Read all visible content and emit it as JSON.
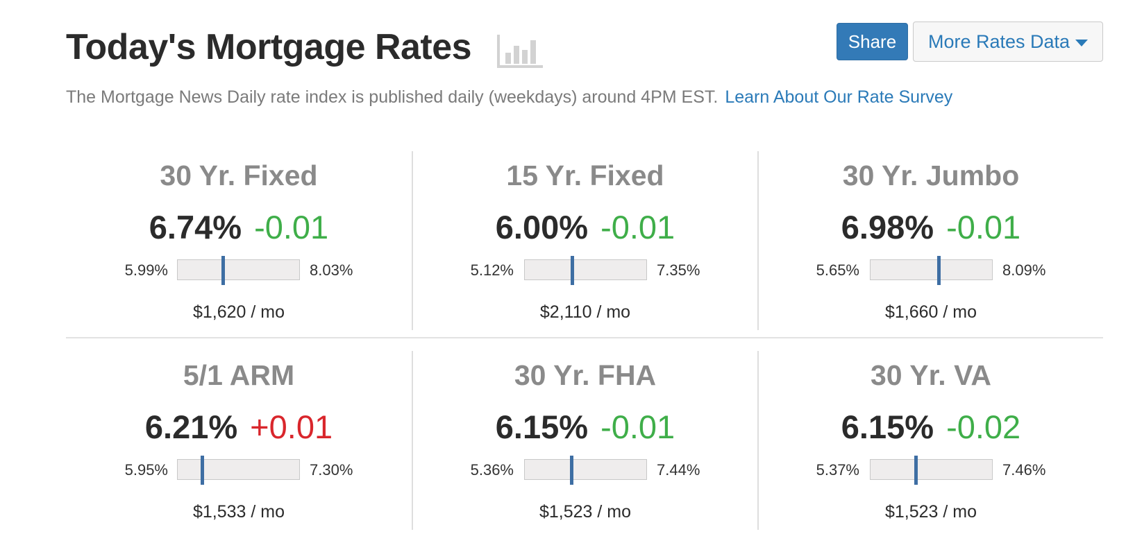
{
  "header": {
    "title": "Today's Mortgage Rates",
    "subtitle": "The Mortgage News Daily rate index is published daily (weekdays) around 4PM EST.",
    "learn_link": "Learn About Our Rate Survey",
    "share_label": "Share",
    "more_label": "More Rates Data",
    "icons": [
      "bar-chart-icon",
      "caret-down-icon"
    ]
  },
  "colors": {
    "accent_blue": "#337ab7",
    "link_blue": "#2a7ab8",
    "change_down": "#3fae49",
    "change_up": "#d9262c",
    "marker": "#3e6ea3"
  },
  "rates": [
    {
      "name": "30 Yr. Fixed",
      "rate": "6.74%",
      "change": "-0.01",
      "direction": "down",
      "low": "5.99%",
      "high": "8.03%",
      "position": 0.37,
      "payment": "$1,620 / mo"
    },
    {
      "name": "15 Yr. Fixed",
      "rate": "6.00%",
      "change": "-0.01",
      "direction": "down",
      "low": "5.12%",
      "high": "7.35%",
      "position": 0.39,
      "payment": "$2,110 / mo"
    },
    {
      "name": "30 Yr. Jumbo",
      "rate": "6.98%",
      "change": "-0.01",
      "direction": "down",
      "low": "5.65%",
      "high": "8.09%",
      "position": 0.56,
      "payment": "$1,660 / mo"
    },
    {
      "name": "5/1 ARM",
      "rate": "6.21%",
      "change": "+0.01",
      "direction": "up",
      "low": "5.95%",
      "high": "7.30%",
      "position": 0.2,
      "payment": "$1,533 / mo"
    },
    {
      "name": "30 Yr. FHA",
      "rate": "6.15%",
      "change": "-0.01",
      "direction": "down",
      "low": "5.36%",
      "high": "7.44%",
      "position": 0.38,
      "payment": "$1,523 / mo"
    },
    {
      "name": "30 Yr. VA",
      "rate": "6.15%",
      "change": "-0.02",
      "direction": "down",
      "low": "5.37%",
      "high": "7.46%",
      "position": 0.37,
      "payment": "$1,523 / mo"
    }
  ]
}
